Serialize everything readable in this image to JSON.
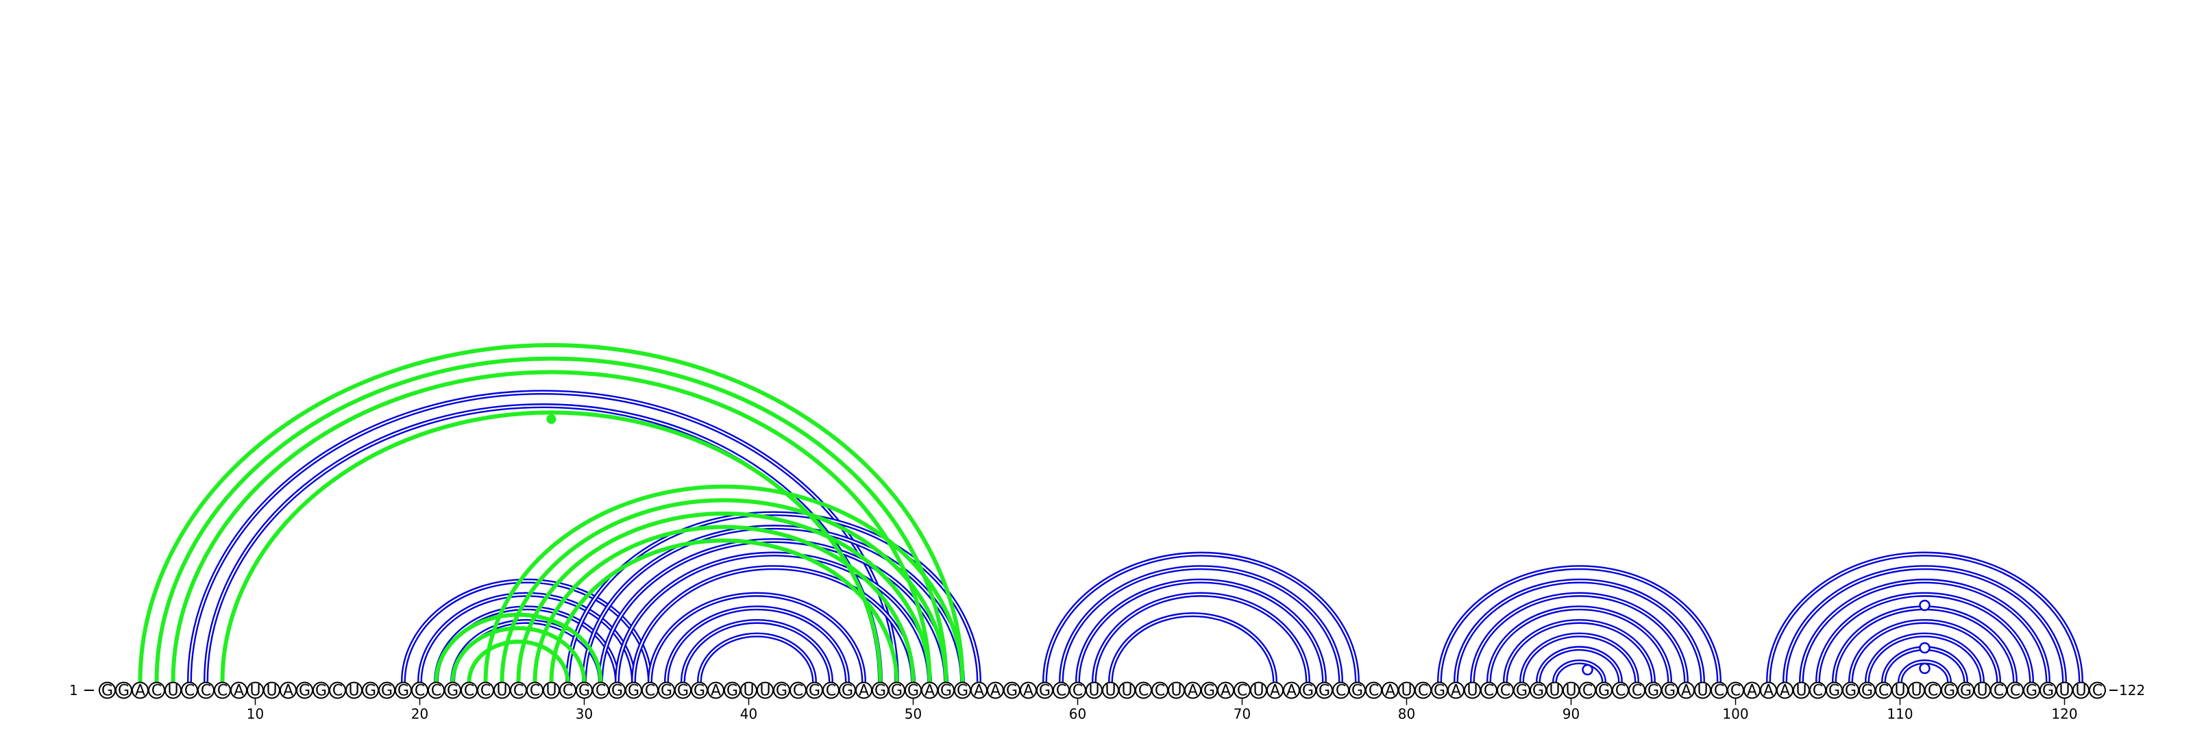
{
  "diagram": {
    "type": "rna-arc-diagram",
    "sequence": "GGACUCCCAUUAGGCUGGGCCGCCUCCUCGCGGCGGGAGUUGCGCGAGGGAGGAAGAGCCUUUCCUAGACUAAGGCGCAUCGAUCCGGUUCGCCGGAUCCAAAUCGGGCUUCGGUCCGGUUC",
    "start_label": "1",
    "end_label": "122",
    "tick_positions": [
      10,
      20,
      30,
      40,
      50,
      60,
      70,
      80,
      90,
      100,
      110,
      120
    ],
    "colors": {
      "blue": "#0000dd",
      "green": "#22ee22",
      "circle_stroke": "#000000"
    },
    "blue_pairs": [
      [
        6,
        49
      ],
      [
        7,
        48
      ],
      [
        19,
        34
      ],
      [
        20,
        33
      ],
      [
        21,
        32
      ],
      [
        22,
        31
      ],
      [
        29,
        54
      ],
      [
        30,
        53
      ],
      [
        31,
        52
      ],
      [
        32,
        51
      ],
      [
        33,
        50
      ],
      [
        34,
        47
      ],
      [
        35,
        46
      ],
      [
        36,
        45
      ],
      [
        37,
        44
      ],
      [
        58,
        77
      ],
      [
        59,
        76
      ],
      [
        60,
        75
      ],
      [
        61,
        74
      ],
      [
        62,
        72
      ],
      [
        82,
        99
      ],
      [
        83,
        98
      ],
      [
        84,
        97
      ],
      [
        85,
        96
      ],
      [
        86,
        95
      ],
      [
        87,
        94
      ],
      [
        88,
        93
      ],
      [
        89,
        92
      ],
      [
        102,
        121
      ],
      [
        103,
        120
      ],
      [
        104,
        119
      ],
      [
        105,
        118
      ],
      [
        106,
        117
      ],
      [
        107,
        116
      ],
      [
        108,
        115
      ],
      [
        109,
        114
      ],
      [
        110,
        113
      ]
    ],
    "green_pairs": [
      [
        3,
        53
      ],
      [
        4,
        52
      ],
      [
        5,
        51
      ],
      [
        8,
        48
      ],
      [
        21,
        31
      ],
      [
        22,
        30
      ],
      [
        23,
        29
      ],
      [
        24,
        53
      ],
      [
        25,
        52
      ],
      [
        26,
        51
      ],
      [
        27,
        50
      ],
      [
        28,
        49
      ]
    ],
    "bulges": [
      {
        "type": "green-dot",
        "pos": 28
      },
      {
        "type": "blue-circle",
        "pos": 91
      },
      {
        "type": "blue-circle",
        "pos": 111.5
      },
      {
        "type": "blue-circle",
        "pos": 111.5
      },
      {
        "type": "blue-circle",
        "pos": 111.5
      }
    ]
  }
}
